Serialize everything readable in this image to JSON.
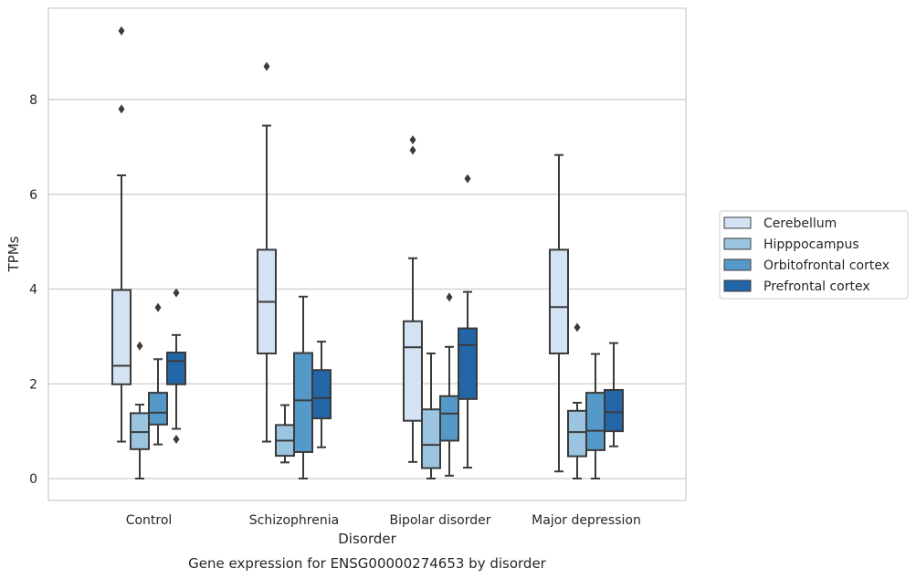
{
  "chart_data": {
    "type": "box",
    "caption": "Gene expression for ENSG00000274653 by disorder",
    "xlabel": "Disorder",
    "ylabel": "TPMs",
    "ylim": [
      -0.45,
      9.8
    ],
    "yticks": [
      0,
      2,
      4,
      6,
      8
    ],
    "grid": "horizontal",
    "legend_position": "right",
    "categories": [
      "Control",
      "Schizophrenia",
      "Bipolar disorder",
      "Major depression"
    ],
    "series": [
      {
        "name": "Cerebellum",
        "color": "#d3e3f3",
        "boxes": [
          {
            "whislo": 0.78,
            "q1": 1.99,
            "med": 2.38,
            "q3": 3.98,
            "whishi": 6.4,
            "fliers": [
              7.8,
              9.45
            ]
          },
          {
            "whislo": 0.78,
            "q1": 2.64,
            "med": 3.73,
            "q3": 4.83,
            "whishi": 7.45,
            "fliers": [
              8.7
            ]
          },
          {
            "whislo": 0.35,
            "q1": 1.22,
            "med": 2.77,
            "q3": 3.32,
            "whishi": 4.65,
            "fliers": [
              6.93,
              7.15
            ]
          },
          {
            "whislo": 0.15,
            "q1": 2.64,
            "med": 3.62,
            "q3": 4.83,
            "whishi": 6.83,
            "fliers": []
          }
        ]
      },
      {
        "name": "Hipppocampus",
        "color": "#9ac4df",
        "boxes": [
          {
            "whislo": 0.0,
            "q1": 0.62,
            "med": 0.98,
            "q3": 1.38,
            "whishi": 1.56,
            "fliers": [
              2.8
            ]
          },
          {
            "whislo": 0.34,
            "q1": 0.48,
            "med": 0.8,
            "q3": 1.13,
            "whishi": 1.55,
            "fliers": []
          },
          {
            "whislo": 0.0,
            "q1": 0.22,
            "med": 0.71,
            "q3": 1.46,
            "whishi": 2.64,
            "fliers": []
          },
          {
            "whislo": 0.0,
            "q1": 0.47,
            "med": 0.98,
            "q3": 1.43,
            "whishi": 1.6,
            "fliers": [
              3.19
            ]
          }
        ]
      },
      {
        "name": "Orbitofrontal cortex",
        "color": "#5499c8",
        "boxes": [
          {
            "whislo": 0.72,
            "q1": 1.14,
            "med": 1.39,
            "q3": 1.81,
            "whishi": 2.52,
            "fliers": [
              3.61
            ]
          },
          {
            "whislo": 0.0,
            "q1": 0.56,
            "med": 1.65,
            "q3": 2.65,
            "whishi": 3.84,
            "fliers": []
          },
          {
            "whislo": 0.06,
            "q1": 0.8,
            "med": 1.37,
            "q3": 1.74,
            "whishi": 2.78,
            "fliers": [
              3.83
            ]
          },
          {
            "whislo": 0.0,
            "q1": 0.6,
            "med": 1.01,
            "q3": 1.81,
            "whishi": 2.63,
            "fliers": []
          }
        ]
      },
      {
        "name": "Prefrontal cortex",
        "color": "#2366a8",
        "boxes": [
          {
            "whislo": 1.05,
            "q1": 1.99,
            "med": 2.48,
            "q3": 2.66,
            "whishi": 3.03,
            "fliers": [
              0.83,
              3.92
            ]
          },
          {
            "whislo": 0.66,
            "q1": 1.27,
            "med": 1.7,
            "q3": 2.29,
            "whishi": 2.89,
            "fliers": []
          },
          {
            "whislo": 0.23,
            "q1": 1.68,
            "med": 2.82,
            "q3": 3.17,
            "whishi": 3.94,
            "fliers": [
              6.33
            ]
          },
          {
            "whislo": 0.68,
            "q1": 1.0,
            "med": 1.4,
            "q3": 1.87,
            "whishi": 2.86,
            "fliers": []
          }
        ]
      }
    ]
  }
}
